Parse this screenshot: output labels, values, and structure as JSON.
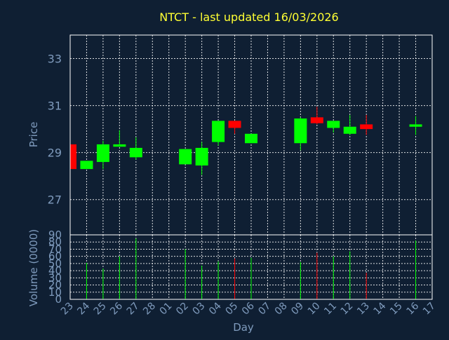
{
  "chart_data": {
    "type": "candlestick",
    "title": "NTCT - last updated 16/03/2026",
    "xlabel": "Day",
    "price_panel": {
      "ylabel": "Price",
      "ylim": [
        25.5,
        34.0
      ],
      "yticks": [
        27,
        29,
        31,
        33
      ],
      "grid": true
    },
    "volume_panel": {
      "ylabel": "Volume (0000)",
      "ylim": [
        0,
        90
      ],
      "yticks": [
        0,
        10,
        20,
        30,
        40,
        50,
        60,
        70,
        80,
        90
      ],
      "grid": true
    },
    "categories": [
      "23",
      "24",
      "25",
      "26",
      "27",
      "28",
      "01",
      "02",
      "03",
      "04",
      "05",
      "06",
      "07",
      "08",
      "09",
      "10",
      "11",
      "12",
      "13",
      "14",
      "15",
      "16",
      "17"
    ],
    "candles": [
      {
        "day": "23",
        "open": 29.35,
        "high": 29.35,
        "low": 28.3,
        "close": 28.3,
        "volume": null
      },
      {
        "day": "24",
        "open": 28.3,
        "high": 28.65,
        "low": 28.3,
        "close": 28.65,
        "volume": 51
      },
      {
        "day": "25",
        "open": 28.6,
        "high": 29.5,
        "low": 28.3,
        "close": 29.35,
        "volume": 43
      },
      {
        "day": "26",
        "open": 29.25,
        "high": 29.95,
        "low": 29.25,
        "close": 29.35,
        "volume": 60
      },
      {
        "day": "27",
        "open": 28.8,
        "high": 29.65,
        "low": 28.7,
        "close": 29.2,
        "volume": 85
      },
      {
        "day": "02",
        "open": 28.5,
        "high": 29.15,
        "low": 28.5,
        "close": 29.15,
        "volume": 70
      },
      {
        "day": "03",
        "open": 28.45,
        "high": 29.45,
        "low": 28.05,
        "close": 29.2,
        "volume": 47
      },
      {
        "day": "04",
        "open": 29.45,
        "high": 30.35,
        "low": 29.3,
        "close": 30.35,
        "volume": 53
      },
      {
        "day": "05",
        "open": 30.35,
        "high": 30.35,
        "low": 29.8,
        "close": 30.05,
        "volume": 57
      },
      {
        "day": "06",
        "open": 29.4,
        "high": 29.8,
        "low": 29.4,
        "close": 29.8,
        "volume": 58
      },
      {
        "day": "09",
        "open": 29.4,
        "high": 30.5,
        "low": 29.1,
        "close": 30.45,
        "volume": 52
      },
      {
        "day": "10",
        "open": 30.5,
        "high": 30.95,
        "low": 30.2,
        "close": 30.25,
        "volume": 65
      },
      {
        "day": "11",
        "open": 30.05,
        "high": 30.35,
        "low": 29.85,
        "close": 30.35,
        "volume": 60
      },
      {
        "day": "12",
        "open": 29.8,
        "high": 30.6,
        "low": 29.75,
        "close": 30.1,
        "volume": 67
      },
      {
        "day": "13",
        "open": 30.2,
        "high": 30.6,
        "low": 29.75,
        "close": 30.0,
        "volume": 37
      },
      {
        "day": "16",
        "open": 30.1,
        "high": 30.55,
        "low": 29.75,
        "close": 30.2,
        "volume": 82
      }
    ],
    "colors": {
      "background": "#0f1f33",
      "up": "#00ff00",
      "down": "#ff0000",
      "title": "#ffff33",
      "axis_text": "#7f9bbd",
      "frame": "#ffffff"
    }
  }
}
